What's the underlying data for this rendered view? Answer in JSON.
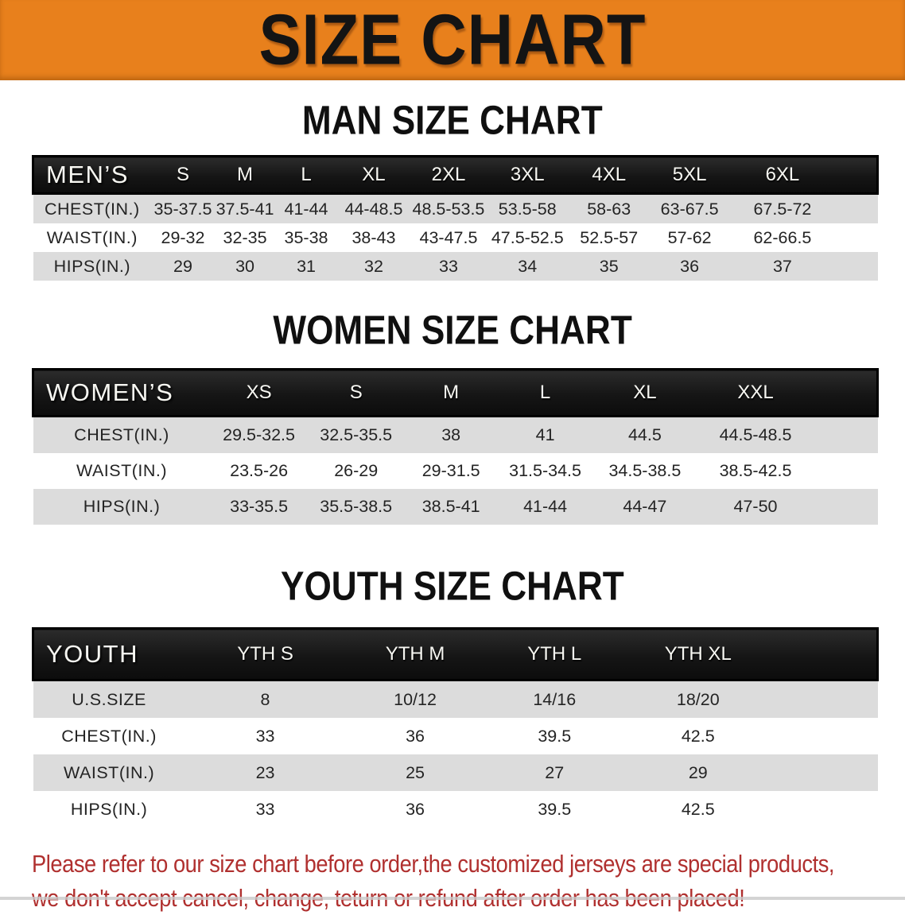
{
  "banner": {
    "title": "SIZE CHART"
  },
  "sections": {
    "man": {
      "heading": "MAN SIZE CHART"
    },
    "women": {
      "heading": "WOMEN SIZE CHART"
    },
    "youth": {
      "heading": "YOUTH SIZE CHART"
    }
  },
  "tables": {
    "men": {
      "label": "MEN’S",
      "sizes": [
        "S",
        "M",
        "L",
        "XL",
        "2XL",
        "3XL",
        "4XL",
        "5XL",
        "6XL"
      ],
      "rows": [
        {
          "label": "CHEST(IN.)",
          "values": [
            "35-37.5",
            "37.5-41",
            "41-44",
            "44-48.5",
            "48.5-53.5",
            "53.5-58",
            "58-63",
            "63-67.5",
            "67.5-72"
          ]
        },
        {
          "label": "WAIST(IN.)",
          "values": [
            "29-32",
            "32-35",
            "35-38",
            "38-43",
            "43-47.5",
            "47.5-52.5",
            "52.5-57",
            "57-62",
            "62-66.5"
          ]
        },
        {
          "label": "HIPS(IN.)",
          "values": [
            "29",
            "30",
            "31",
            "32",
            "33",
            "34",
            "35",
            "36",
            "37"
          ]
        }
      ]
    },
    "women": {
      "label": "WOMEN’S",
      "sizes": [
        "XS",
        "S",
        "M",
        "L",
        "XL",
        "XXL"
      ],
      "rows": [
        {
          "label": "CHEST(IN.)",
          "values": [
            "29.5-32.5",
            "32.5-35.5",
            "38",
            "41",
            "44.5",
            "44.5-48.5"
          ]
        },
        {
          "label": "WAIST(IN.)",
          "values": [
            "23.5-26",
            "26-29",
            "29-31.5",
            "31.5-34.5",
            "34.5-38.5",
            "38.5-42.5"
          ]
        },
        {
          "label": "HIPS(IN.)",
          "values": [
            "33-35.5",
            "35.5-38.5",
            "38.5-41",
            "41-44",
            "44-47",
            "47-50"
          ]
        }
      ]
    },
    "youth": {
      "label": "YOUTH",
      "sizes": [
        "YTH S",
        "YTH M",
        "YTH L",
        "YTH XL"
      ],
      "rows": [
        {
          "label": "U.S.SIZE",
          "values": [
            "8",
            "10/12",
            "14/16",
            "18/20"
          ]
        },
        {
          "label": "CHEST(IN.)",
          "values": [
            "33",
            "36",
            "39.5",
            "42.5"
          ]
        },
        {
          "label": "WAIST(IN.)",
          "values": [
            "23",
            "25",
            "27",
            "29"
          ]
        },
        {
          "label": "HIPS(IN.)",
          "values": [
            "33",
            "36",
            "39.5",
            "42.5"
          ]
        }
      ]
    }
  },
  "footer": {
    "line1": "Please refer to our size chart before order,the customized jerseys are special products,",
    "line2": "we don't accept cancel, change, teturn or refund after order has been placed!"
  },
  "colors": {
    "banner_orange": "#E8801C",
    "header_bar_black": "#151515",
    "row_gray": "#DCDCDC",
    "note_red": "#B0302F"
  }
}
